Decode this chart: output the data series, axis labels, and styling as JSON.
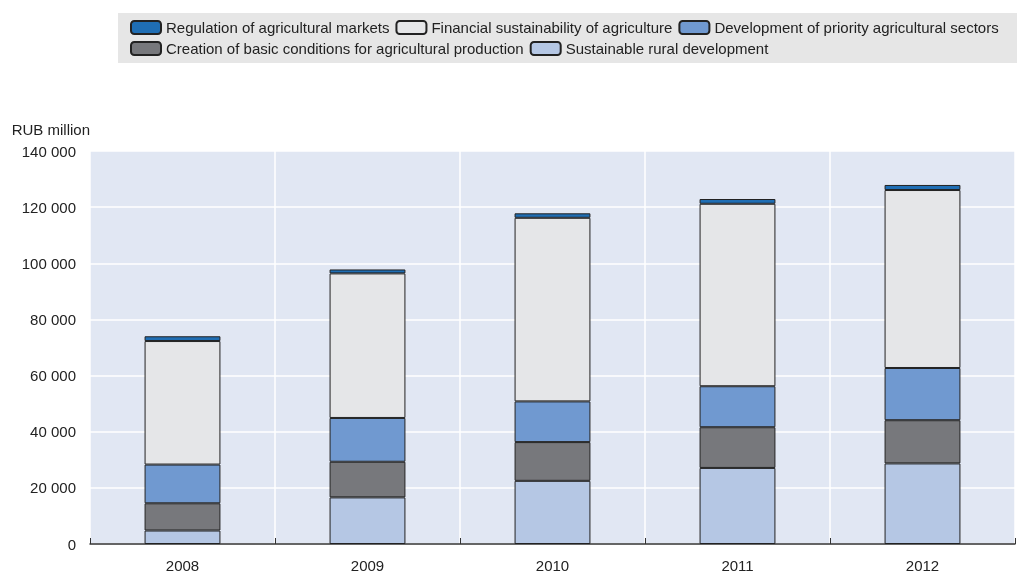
{
  "chart_data": {
    "type": "bar",
    "stacked": true,
    "ylabel": "RUB million",
    "categories": [
      "2008",
      "2009",
      "2010",
      "2011",
      "2012"
    ],
    "series": [
      {
        "name": "Sustainable rural development",
        "color": "#b5c7e4",
        "values": [
          4800,
          16600,
          22500,
          27100,
          28700
        ]
      },
      {
        "name": "Creation of basic conditions for agricultural production",
        "color": "#77787c",
        "values": [
          9700,
          12700,
          13800,
          14500,
          15400
        ]
      },
      {
        "name": "Development of priority agricultural sectors",
        "color": "#7099d0",
        "values": [
          13800,
          15600,
          14500,
          14600,
          18600
        ]
      },
      {
        "name": "Financial sustainability of agriculture",
        "color": "#e5e6e8",
        "values": [
          44000,
          51500,
          65400,
          65000,
          63400
        ]
      },
      {
        "name": "Regulation of agricultural markets",
        "color": "#1f6eb4",
        "values": [
          1700,
          1400,
          1600,
          1700,
          1800
        ]
      }
    ],
    "ylim": [
      0,
      140000
    ],
    "yticks": [
      {
        "value": 0,
        "label": "0"
      },
      {
        "value": 20000,
        "label": "20 000"
      },
      {
        "value": 40000,
        "label": "40 000"
      },
      {
        "value": 60000,
        "label": "60 000"
      },
      {
        "value": 80000,
        "label": "80 000"
      },
      {
        "value": 100000,
        "label": "100 000"
      },
      {
        "value": 120000,
        "label": "120 000"
      },
      {
        "value": 140000,
        "label": "140 000"
      }
    ],
    "grid": true,
    "legend": "top"
  }
}
